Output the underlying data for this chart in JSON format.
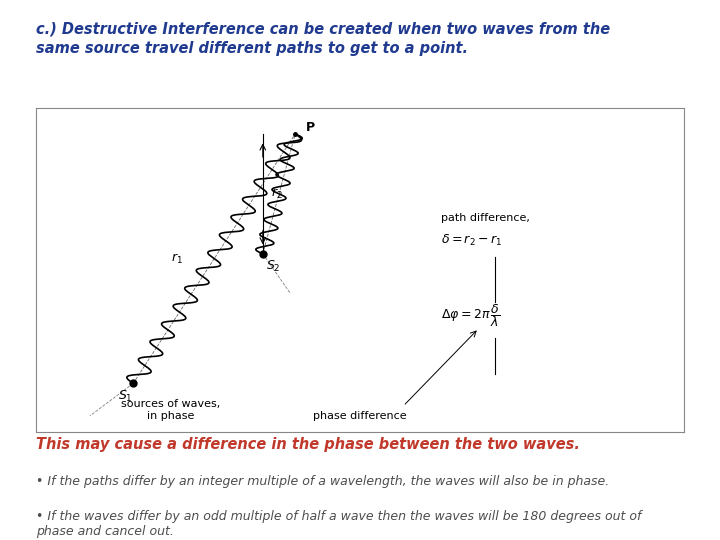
{
  "title": "c.) Destructive Interference can be created when two waves from the\nsame source travel different paths to get to a point.",
  "italic_heading": "This may cause a difference in the phase between the two waves.",
  "bullet1": "• If the paths differ by an integer multiple of a wavelength, the waves will also be in phase.",
  "bullet2": "• If the waves differ by an odd multiple of half a wave then the waves will be 180 degrees out of\nphase and cancel out.",
  "bg_color": "#ffffff",
  "title_color": "#1f3a8f",
  "italic_heading_color": "#c0392b",
  "bullet_color": "#4d4d4d"
}
